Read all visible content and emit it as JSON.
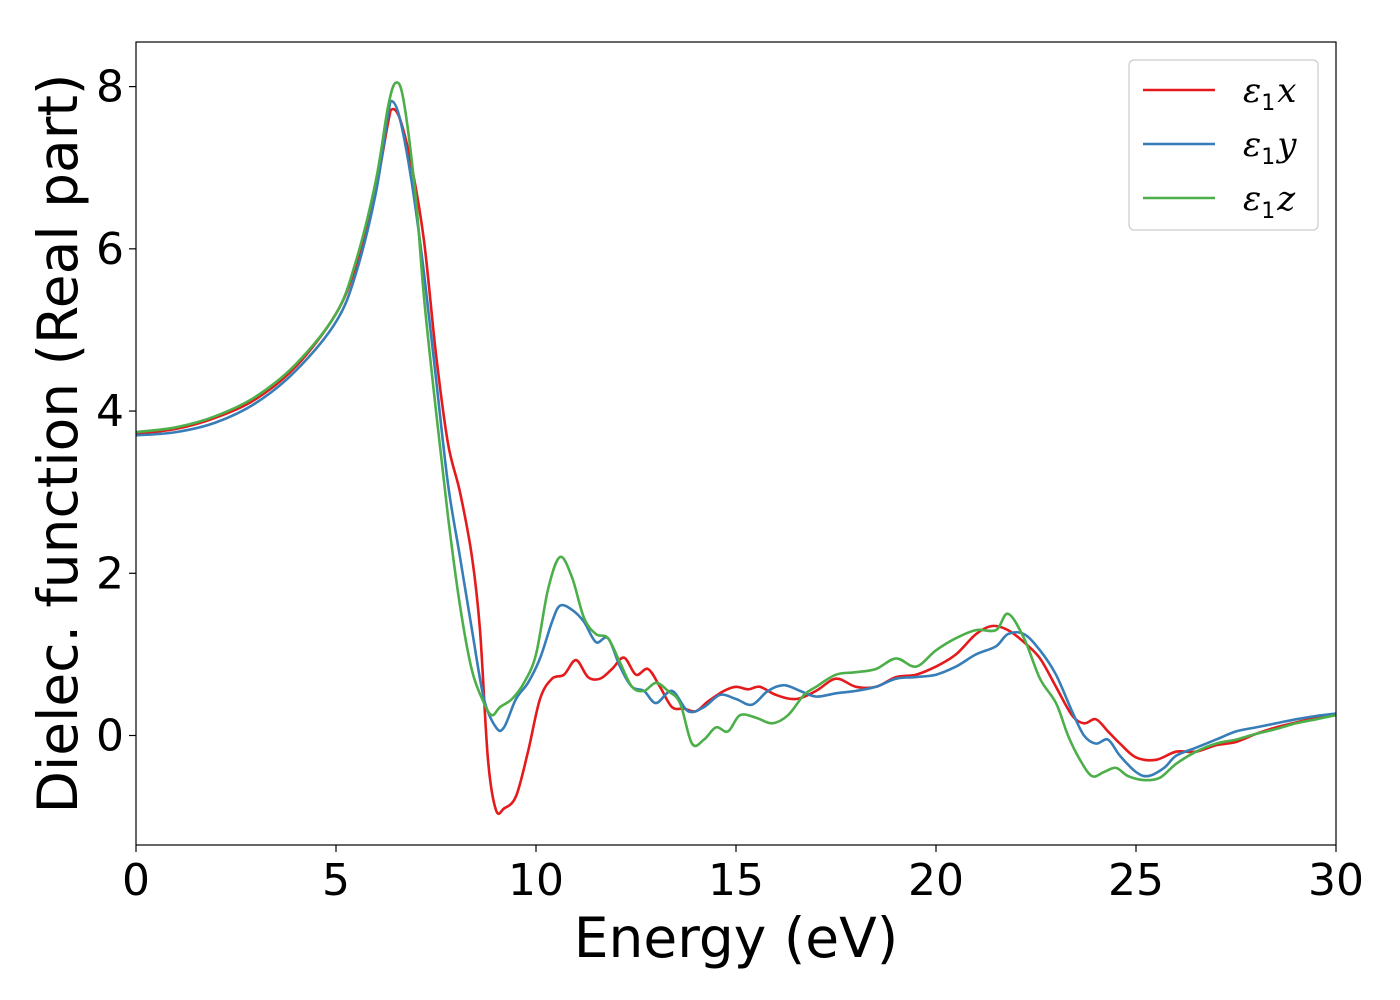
{
  "chart_data": {
    "type": "line",
    "title": "",
    "xlabel": "Energy (eV)",
    "ylabel": "Dielec. function (Real part)",
    "xlim": [
      0,
      30
    ],
    "ylim": [
      -1.35,
      8.55
    ],
    "xticks": [
      0,
      5,
      10,
      15,
      20,
      25,
      30
    ],
    "yticks": [
      0,
      2,
      4,
      6,
      8
    ],
    "grid": false,
    "legend_position": "top-right",
    "series": [
      {
        "name": "ε₁x",
        "name_base": "ε",
        "name_sub": "1",
        "name_tail": "x",
        "color": "#e41a1c",
        "points": [
          [
            0,
            3.72
          ],
          [
            1,
            3.78
          ],
          [
            2,
            3.92
          ],
          [
            3,
            4.15
          ],
          [
            4,
            4.55
          ],
          [
            5,
            5.2
          ],
          [
            5.5,
            5.8
          ],
          [
            6,
            6.75
          ],
          [
            6.3,
            7.55
          ],
          [
            6.4,
            7.72
          ],
          [
            6.6,
            7.6
          ],
          [
            6.9,
            7.0
          ],
          [
            7.2,
            6.1
          ],
          [
            7.5,
            4.7
          ],
          [
            7.8,
            3.6
          ],
          [
            8.1,
            3.0
          ],
          [
            8.4,
            2.2
          ],
          [
            8.6,
            1.3
          ],
          [
            8.8,
            -0.3
          ],
          [
            9.0,
            -0.92
          ],
          [
            9.2,
            -0.9
          ],
          [
            9.5,
            -0.75
          ],
          [
            9.8,
            -0.2
          ],
          [
            10.1,
            0.45
          ],
          [
            10.4,
            0.7
          ],
          [
            10.7,
            0.75
          ],
          [
            11.0,
            0.93
          ],
          [
            11.3,
            0.72
          ],
          [
            11.6,
            0.7
          ],
          [
            11.9,
            0.82
          ],
          [
            12.2,
            0.96
          ],
          [
            12.5,
            0.75
          ],
          [
            12.8,
            0.82
          ],
          [
            13.1,
            0.6
          ],
          [
            13.4,
            0.35
          ],
          [
            13.7,
            0.33
          ],
          [
            14.0,
            0.3
          ],
          [
            14.3,
            0.42
          ],
          [
            14.7,
            0.55
          ],
          [
            15.0,
            0.6
          ],
          [
            15.3,
            0.57
          ],
          [
            15.6,
            0.6
          ],
          [
            16.0,
            0.5
          ],
          [
            16.5,
            0.45
          ],
          [
            17.0,
            0.55
          ],
          [
            17.5,
            0.7
          ],
          [
            18.0,
            0.6
          ],
          [
            18.5,
            0.6
          ],
          [
            19.0,
            0.72
          ],
          [
            19.5,
            0.75
          ],
          [
            20.0,
            0.85
          ],
          [
            20.5,
            1.0
          ],
          [
            21.0,
            1.25
          ],
          [
            21.4,
            1.35
          ],
          [
            21.8,
            1.3
          ],
          [
            22.2,
            1.15
          ],
          [
            22.6,
            0.95
          ],
          [
            23.0,
            0.6
          ],
          [
            23.4,
            0.25
          ],
          [
            23.7,
            0.15
          ],
          [
            24.0,
            0.2
          ],
          [
            24.3,
            0.05
          ],
          [
            24.6,
            -0.1
          ],
          [
            25.0,
            -0.27
          ],
          [
            25.5,
            -0.3
          ],
          [
            26.0,
            -0.2
          ],
          [
            26.5,
            -0.2
          ],
          [
            27.0,
            -0.12
          ],
          [
            27.5,
            -0.08
          ],
          [
            28.0,
            0.02
          ],
          [
            28.5,
            0.1
          ],
          [
            29.0,
            0.16
          ],
          [
            29.5,
            0.22
          ],
          [
            30.0,
            0.27
          ]
        ]
      },
      {
        "name": "ε₁y",
        "name_base": "ε",
        "name_sub": "1",
        "name_tail": "y",
        "color": "#377eb8",
        "points": [
          [
            0,
            3.7
          ],
          [
            1,
            3.74
          ],
          [
            2,
            3.86
          ],
          [
            3,
            4.1
          ],
          [
            4,
            4.5
          ],
          [
            5,
            5.1
          ],
          [
            5.5,
            5.7
          ],
          [
            6,
            6.7
          ],
          [
            6.3,
            7.65
          ],
          [
            6.4,
            7.82
          ],
          [
            6.6,
            7.6
          ],
          [
            6.9,
            6.8
          ],
          [
            7.2,
            5.7
          ],
          [
            7.5,
            4.4
          ],
          [
            7.8,
            3.1
          ],
          [
            8.1,
            2.2
          ],
          [
            8.4,
            1.3
          ],
          [
            8.7,
            0.45
          ],
          [
            9.0,
            0.1
          ],
          [
            9.2,
            0.1
          ],
          [
            9.5,
            0.45
          ],
          [
            9.8,
            0.65
          ],
          [
            10.1,
            0.95
          ],
          [
            10.4,
            1.4
          ],
          [
            10.6,
            1.6
          ],
          [
            10.9,
            1.55
          ],
          [
            11.2,
            1.4
          ],
          [
            11.5,
            1.15
          ],
          [
            11.8,
            1.2
          ],
          [
            12.1,
            0.85
          ],
          [
            12.4,
            0.6
          ],
          [
            12.7,
            0.55
          ],
          [
            13.0,
            0.4
          ],
          [
            13.4,
            0.55
          ],
          [
            13.8,
            0.3
          ],
          [
            14.2,
            0.35
          ],
          [
            14.6,
            0.5
          ],
          [
            15.0,
            0.45
          ],
          [
            15.4,
            0.38
          ],
          [
            15.8,
            0.55
          ],
          [
            16.2,
            0.62
          ],
          [
            16.6,
            0.55
          ],
          [
            17.0,
            0.48
          ],
          [
            17.5,
            0.52
          ],
          [
            18.0,
            0.55
          ],
          [
            18.5,
            0.6
          ],
          [
            19.0,
            0.7
          ],
          [
            19.5,
            0.72
          ],
          [
            20.0,
            0.75
          ],
          [
            20.5,
            0.85
          ],
          [
            21.0,
            1.0
          ],
          [
            21.5,
            1.1
          ],
          [
            21.8,
            1.25
          ],
          [
            22.2,
            1.25
          ],
          [
            22.6,
            1.05
          ],
          [
            23.0,
            0.75
          ],
          [
            23.4,
            0.3
          ],
          [
            23.7,
            0.0
          ],
          [
            24.0,
            -0.1
          ],
          [
            24.3,
            -0.05
          ],
          [
            24.6,
            -0.25
          ],
          [
            25.0,
            -0.45
          ],
          [
            25.3,
            -0.5
          ],
          [
            25.7,
            -0.4
          ],
          [
            26.0,
            -0.25
          ],
          [
            26.5,
            -0.15
          ],
          [
            27.0,
            -0.05
          ],
          [
            27.5,
            0.05
          ],
          [
            28.0,
            0.1
          ],
          [
            28.5,
            0.15
          ],
          [
            29.0,
            0.2
          ],
          [
            29.5,
            0.24
          ],
          [
            30.0,
            0.27
          ]
        ]
      },
      {
        "name": "ε₁z",
        "name_base": "ε",
        "name_sub": "1",
        "name_tail": "z",
        "color": "#4daf4a",
        "points": [
          [
            0,
            3.74
          ],
          [
            1,
            3.8
          ],
          [
            2,
            3.94
          ],
          [
            3,
            4.18
          ],
          [
            4,
            4.58
          ],
          [
            5,
            5.2
          ],
          [
            5.5,
            5.85
          ],
          [
            6,
            6.85
          ],
          [
            6.3,
            7.75
          ],
          [
            6.5,
            8.05
          ],
          [
            6.7,
            7.8
          ],
          [
            7.0,
            6.6
          ],
          [
            7.2,
            5.4
          ],
          [
            7.5,
            4.0
          ],
          [
            7.8,
            2.7
          ],
          [
            8.1,
            1.6
          ],
          [
            8.4,
            0.8
          ],
          [
            8.7,
            0.4
          ],
          [
            8.9,
            0.25
          ],
          [
            9.1,
            0.35
          ],
          [
            9.4,
            0.45
          ],
          [
            9.7,
            0.65
          ],
          [
            10.0,
            1.0
          ],
          [
            10.3,
            1.8
          ],
          [
            10.6,
            2.2
          ],
          [
            10.9,
            1.95
          ],
          [
            11.2,
            1.45
          ],
          [
            11.5,
            1.25
          ],
          [
            11.8,
            1.2
          ],
          [
            12.1,
            0.9
          ],
          [
            12.4,
            0.6
          ],
          [
            12.7,
            0.55
          ],
          [
            13.0,
            0.65
          ],
          [
            13.3,
            0.55
          ],
          [
            13.6,
            0.4
          ],
          [
            13.9,
            -0.1
          ],
          [
            14.2,
            -0.05
          ],
          [
            14.5,
            0.1
          ],
          [
            14.8,
            0.05
          ],
          [
            15.1,
            0.25
          ],
          [
            15.5,
            0.22
          ],
          [
            15.9,
            0.15
          ],
          [
            16.3,
            0.25
          ],
          [
            16.7,
            0.5
          ],
          [
            17.0,
            0.6
          ],
          [
            17.5,
            0.75
          ],
          [
            18.0,
            0.78
          ],
          [
            18.5,
            0.82
          ],
          [
            19.0,
            0.95
          ],
          [
            19.5,
            0.85
          ],
          [
            20.0,
            1.05
          ],
          [
            20.5,
            1.2
          ],
          [
            21.0,
            1.3
          ],
          [
            21.5,
            1.3
          ],
          [
            21.8,
            1.5
          ],
          [
            22.2,
            1.2
          ],
          [
            22.6,
            0.7
          ],
          [
            23.0,
            0.4
          ],
          [
            23.3,
            0.0
          ],
          [
            23.6,
            -0.3
          ],
          [
            23.9,
            -0.5
          ],
          [
            24.2,
            -0.45
          ],
          [
            24.5,
            -0.4
          ],
          [
            24.8,
            -0.5
          ],
          [
            25.2,
            -0.55
          ],
          [
            25.6,
            -0.52
          ],
          [
            26.0,
            -0.35
          ],
          [
            26.5,
            -0.2
          ],
          [
            27.0,
            -0.1
          ],
          [
            27.5,
            -0.05
          ],
          [
            28.0,
            0.02
          ],
          [
            28.5,
            0.08
          ],
          [
            29.0,
            0.15
          ],
          [
            29.5,
            0.2
          ],
          [
            30.0,
            0.25
          ]
        ]
      }
    ]
  }
}
